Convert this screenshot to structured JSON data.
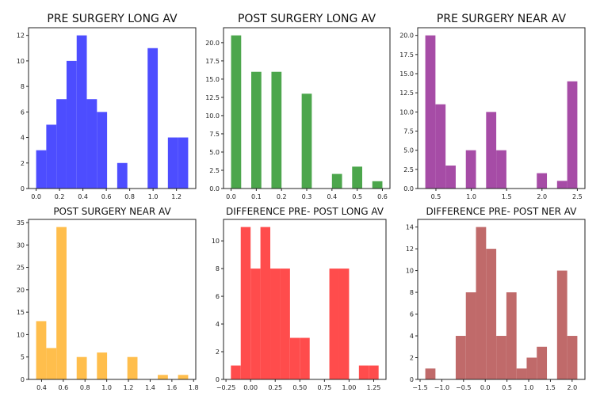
{
  "chart_data": [
    {
      "type": "bar",
      "title": "PRE SURGERY LONG AV",
      "color": "#4d4dff",
      "bin_start": 0.0,
      "bin_end": 1.3,
      "counts": [
        3,
        5,
        7,
        10,
        12,
        7,
        6,
        0,
        2,
        0,
        0,
        11,
        0,
        4,
        4
      ],
      "xticks": [
        "0.0",
        "0.2",
        "0.4",
        "0.6",
        "0.8",
        "1.0",
        "1.2"
      ],
      "xtick_values": [
        0,
        0.2,
        0.4,
        0.6,
        0.8,
        1.0,
        1.2
      ],
      "yticks": [
        "0",
        "2",
        "4",
        "6",
        "8",
        "10",
        "12"
      ],
      "ytick_values": [
        0,
        2,
        4,
        6,
        8,
        10,
        12
      ]
    },
    {
      "type": "bar",
      "title": "POST SURGERY LONG AV",
      "color": "#4ca64c",
      "bin_start": 0.0,
      "bin_end": 0.6,
      "counts": [
        21,
        0,
        16,
        0,
        16,
        0,
        0,
        13,
        0,
        0,
        2,
        0,
        3,
        0,
        1
      ],
      "xticks": [
        "0.0",
        "0.1",
        "0.2",
        "0.3",
        "0.4",
        "0.5",
        "0.6"
      ],
      "xtick_values": [
        0,
        0.1,
        0.2,
        0.3,
        0.4,
        0.5,
        0.6
      ],
      "yticks": [
        "0.0",
        "2.5",
        "5.0",
        "7.5",
        "10.0",
        "12.5",
        "15.0",
        "17.5",
        "20.0"
      ],
      "ytick_values": [
        0,
        2.5,
        5,
        7.5,
        10,
        12.5,
        15,
        17.5,
        20
      ]
    },
    {
      "type": "bar",
      "title": "PRE SURGERY NEAR AV",
      "color": "#a64ca6",
      "bin_start": 0.35,
      "bin_end": 2.5,
      "counts": [
        20,
        11,
        3,
        0,
        5,
        0,
        10,
        5,
        0,
        0,
        0,
        2,
        0,
        1,
        14
      ],
      "xticks": [
        "0.5",
        "1.0",
        "1.5",
        "2.0",
        "2.5"
      ],
      "xtick_values": [
        0.5,
        1.0,
        1.5,
        2.0,
        2.5
      ],
      "yticks": [
        "0.0",
        "2.5",
        "5.0",
        "7.5",
        "10.0",
        "12.5",
        "15.0",
        "17.5",
        "20.0"
      ],
      "ytick_values": [
        0,
        2.5,
        5,
        7.5,
        10,
        12.5,
        15,
        17.5,
        20
      ]
    },
    {
      "type": "bar",
      "title": "POST SURGERY NEAR AV",
      "color": "#ffbe4c",
      "bin_start": 0.35,
      "bin_end": 1.75,
      "counts": [
        13,
        7,
        34,
        0,
        5,
        0,
        6,
        0,
        0,
        5,
        0,
        0,
        1,
        0,
        1
      ],
      "xticks": [
        "0.4",
        "0.6",
        "0.8",
        "1.0",
        "1.2",
        "1.4",
        "1.6",
        "1.8"
      ],
      "xtick_values": [
        0.4,
        0.6,
        0.8,
        1.0,
        1.2,
        1.4,
        1.6,
        1.8
      ],
      "yticks": [
        "0",
        "5",
        "10",
        "15",
        "20",
        "25",
        "30",
        "35"
      ],
      "ytick_values": [
        0,
        5,
        10,
        15,
        20,
        25,
        30,
        35
      ]
    },
    {
      "type": "bar",
      "title": "DIFFERENCE PRE- POST LONG AV",
      "color": "#ff4c4c",
      "bin_start": -0.2,
      "bin_end": 1.3,
      "counts": [
        1,
        11,
        8,
        11,
        8,
        8,
        3,
        3,
        0,
        0,
        8,
        8,
        0,
        1,
        1
      ],
      "xticks": [
        "−0.25",
        "0.00",
        "0.25",
        "0.50",
        "0.75",
        "1.00",
        "1.25"
      ],
      "xtick_values": [
        -0.25,
        0,
        0.25,
        0.5,
        0.75,
        1.0,
        1.25
      ],
      "yticks": [
        "0",
        "2",
        "4",
        "6",
        "8",
        "10"
      ],
      "ytick_values": [
        0,
        2,
        4,
        6,
        8,
        10
      ]
    },
    {
      "type": "bar",
      "title": "DIFFERENCE PRE- POST NER AV",
      "color": "#c06a6a",
      "bin_start": -1.38,
      "bin_end": 2.12,
      "counts": [
        1,
        0,
        0,
        4,
        8,
        14,
        12,
        4,
        8,
        1,
        2,
        3,
        0,
        10,
        4
      ],
      "xticks": [
        "−1.5",
        "−1.0",
        "−0.5",
        "0.0",
        "0.5",
        "1.0",
        "1.5",
        "2.0"
      ],
      "xtick_values": [
        -1.5,
        -1.0,
        -0.5,
        0,
        0.5,
        1.0,
        1.5,
        2.0
      ],
      "yticks": [
        "0",
        "2",
        "4",
        "6",
        "8",
        "10",
        "12",
        "14"
      ],
      "ytick_values": [
        0,
        2,
        4,
        6,
        8,
        10,
        12,
        14
      ]
    }
  ]
}
